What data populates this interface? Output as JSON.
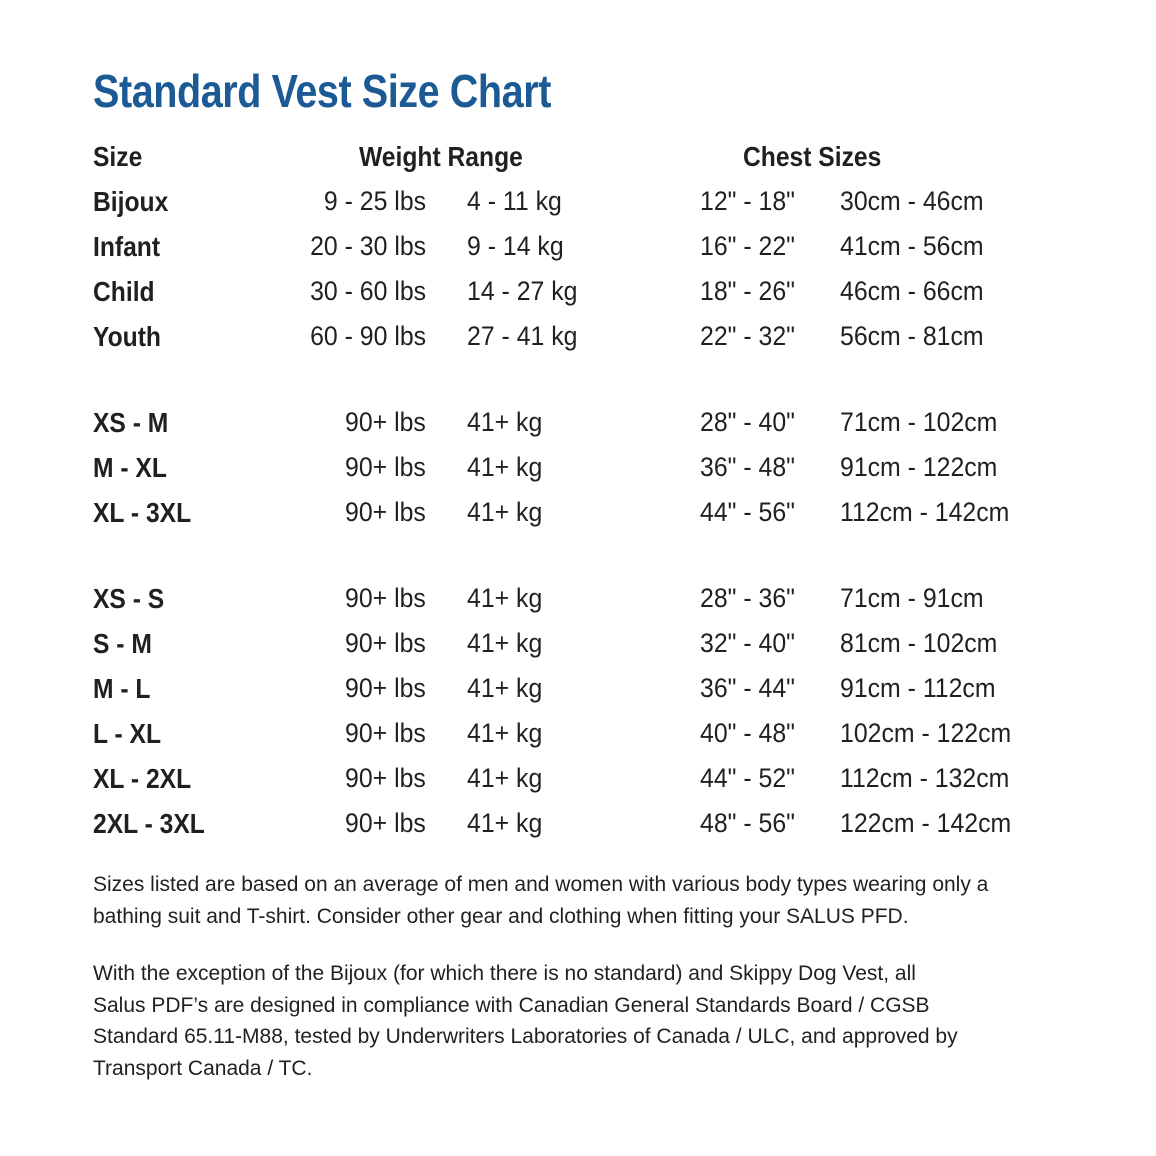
{
  "title": "Standard Vest Size Chart",
  "table": {
    "headers": [
      "Size",
      "Weight Range",
      "Chest Sizes"
    ],
    "groups": [
      [
        [
          "Bijoux",
          "9 - 25 lbs",
          "4 - 11 kg",
          "12\" - 18\"",
          "30cm - 46cm"
        ],
        [
          "Infant",
          "20 - 30 lbs",
          "9 - 14 kg",
          "16\" - 22\"",
          "41cm - 56cm"
        ],
        [
          "Child",
          "30 - 60 lbs",
          "14 - 27 kg",
          "18\" - 26\"",
          "46cm - 66cm"
        ],
        [
          "Youth",
          "60 - 90 lbs",
          "27 - 41 kg",
          "22\" - 32\"",
          "56cm - 81cm"
        ]
      ],
      [
        [
          "XS - M",
          "90+ lbs",
          "41+ kg",
          "28\" - 40\"",
          "71cm - 102cm"
        ],
        [
          "M - XL",
          "90+ lbs",
          "41+ kg",
          "36\" - 48\"",
          "91cm - 122cm"
        ],
        [
          "XL - 3XL",
          "90+ lbs",
          "41+ kg",
          "44\" - 56\"",
          "112cm - 142cm"
        ]
      ],
      [
        [
          "XS - S",
          "90+ lbs",
          "41+ kg",
          "28\" - 36\"",
          "71cm - 91cm"
        ],
        [
          "S - M",
          "90+ lbs",
          "41+ kg",
          "32\" - 40\"",
          "81cm - 102cm"
        ],
        [
          "M - L",
          "90+ lbs",
          "41+ kg",
          "36\" - 44\"",
          "91cm - 112cm"
        ],
        [
          "L - XL",
          "90+ lbs",
          "41+ kg",
          "40\" - 48\"",
          "102cm - 122cm"
        ],
        [
          "XL - 2XL",
          "90+ lbs",
          "41+ kg",
          "44\" - 52\"",
          "112cm - 132cm"
        ],
        [
          "2XL - 3XL",
          "90+ lbs",
          "41+ kg",
          "48\" - 56\"",
          "122cm - 142cm"
        ]
      ]
    ]
  },
  "notes": [
    [
      "Sizes listed are based on an average of men and women with various body types wearing only a",
      "bathing suit and T-shirt. Consider other gear and clothing when fitting your SALUS PFD."
    ],
    [
      "With the exception of the Bijoux (for which there is no standard) and Skippy Dog Vest, all",
      "Salus PDF’s are designed in compliance with Canadian General Standards Board / CGSB",
      "Standard 65.11-M88, tested by Underwriters Laboratories of Canada / ULC, and approved by",
      "Transport Canada / TC."
    ]
  ]
}
